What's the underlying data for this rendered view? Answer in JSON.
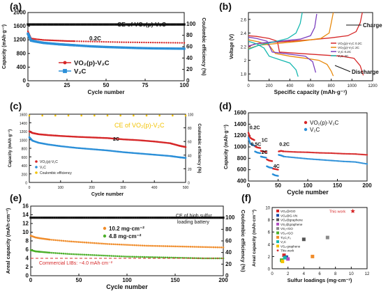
{
  "figure": {
    "panel_labels": [
      "(a)",
      "(b)",
      "(c)",
      "(d)",
      "(e)",
      "(f)"
    ]
  },
  "chart_data": [
    {
      "panel": "(a)",
      "type": "line",
      "xlabel": "Cycle number",
      "ylabel": "Capacity (mAh·g⁻¹)",
      "y2label": "Coulombic efficiency (%)",
      "xlim": [
        0,
        100
      ],
      "ylim": [
        0,
        2000
      ],
      "y2lim": [
        0,
        120
      ],
      "xticks": [
        0,
        25,
        50,
        75,
        100
      ],
      "yticks": [
        0,
        400,
        800,
        1200,
        1600,
        2000
      ],
      "y2ticks": [
        0,
        20,
        40,
        60,
        80,
        100
      ],
      "annotations": [
        "0.2C",
        "CE of VO₂(p)-V₂C"
      ],
      "series": [
        {
          "name": "VO₂(p)-V₂C",
          "color": "#d62728",
          "marker": "circle",
          "x": [
            0,
            2,
            5,
            10,
            15,
            20,
            25,
            30,
            40,
            50,
            60,
            70,
            80,
            90,
            100
          ],
          "y": [
            1450,
            1240,
            1220,
            1195,
            1185,
            1175,
            1165,
            1160,
            1150,
            1140,
            1130,
            1125,
            1120,
            1115,
            1110
          ]
        },
        {
          "name": "V₂C",
          "color": "#2b8fd8",
          "marker": "square",
          "x": [
            0,
            2,
            5,
            10,
            15,
            20,
            25,
            30,
            40,
            50,
            60,
            70,
            80,
            90,
            100
          ],
          "y": [
            1380,
            1180,
            1150,
            1110,
            1090,
            1070,
            1055,
            1040,
            1010,
            990,
            975,
            960,
            950,
            945,
            940
          ]
        },
        {
          "name": "CE of VO₂(p)-V₂C",
          "axis": "y2",
          "color": "#111111",
          "x": [
            0,
            100
          ],
          "y": [
            99,
            99
          ]
        }
      ]
    },
    {
      "panel": "(b)",
      "type": "line",
      "xlabel": "Specific capacity (mAh·g⁻¹)",
      "ylabel": "Voltage (V)",
      "xlim": [
        0,
        1200
      ],
      "ylim": [
        1.7,
        2.7
      ],
      "xticks": [
        0,
        200,
        400,
        600,
        800,
        1000,
        1200
      ],
      "yticks": [
        1.8,
        2.0,
        2.2,
        2.4,
        2.6
      ],
      "annotations": [
        "Charge",
        "Discharge"
      ],
      "series": [
        {
          "name": "VO₂(p)-V₂C 0.2C",
          "color": "#d62728",
          "discharge": {
            "x": [
              0,
              80,
              200,
              280,
              300,
              500,
              700,
              900,
              1020,
              1080,
              1110
            ],
            "y": [
              2.36,
              2.35,
              2.32,
              2.28,
              2.12,
              2.1,
              2.08,
              2.06,
              2.03,
              1.92,
              1.78
            ]
          },
          "charge": {
            "x": [
              0,
              60,
              200,
              400,
              600,
              800,
              960,
              1040,
              1080,
              1100
            ],
            "y": [
              2.2,
              2.24,
              2.26,
              2.28,
              2.3,
              2.33,
              2.36,
              2.42,
              2.55,
              2.7
            ]
          }
        },
        {
          "name": "VO₂(p)-V₂C 2C",
          "color": "#e8890c",
          "discharge": {
            "x": [
              0,
              100,
              200,
              260,
              400,
              550,
              680,
              760,
              800,
              820
            ],
            "y": [
              2.3,
              2.27,
              2.22,
              2.1,
              2.06,
              2.03,
              2.0,
              1.94,
              1.84,
              1.77
            ]
          },
          "charge": {
            "x": [
              0,
              100,
              300,
              500,
              700,
              780,
              800,
              820
            ],
            "y": [
              2.17,
              2.22,
              2.25,
              2.28,
              2.32,
              2.4,
              2.55,
              2.7
            ]
          }
        },
        {
          "name": "V₂C 0.2C",
          "color": "#7b3fbf",
          "discharge": {
            "x": [
              0,
              80,
              180,
              230,
              400,
              550,
              620,
              650
            ],
            "y": [
              2.34,
              2.32,
              2.28,
              2.12,
              2.09,
              2.06,
              1.98,
              1.82
            ]
          },
          "charge": {
            "x": [
              0,
              100,
              300,
              500,
              600,
              640,
              660
            ],
            "y": [
              2.21,
              2.25,
              2.28,
              2.31,
              2.36,
              2.48,
              2.68
            ]
          }
        },
        {
          "name": "V₂C 2C",
          "color": "#17b8b0",
          "discharge": {
            "x": [
              0,
              80,
              150,
              200,
              300,
              400,
              460,
              480
            ],
            "y": [
              2.28,
              2.24,
              2.18,
              2.06,
              2.01,
              1.96,
              1.86,
              1.76
            ]
          },
          "charge": {
            "x": [
              0,
              100,
              250,
              380,
              460,
              500,
              520
            ],
            "y": [
              2.16,
              2.22,
              2.27,
              2.32,
              2.4,
              2.54,
              2.7
            ]
          }
        }
      ]
    },
    {
      "panel": "(c)",
      "type": "line",
      "xlabel": "Cycle number",
      "ylabel": "Capacity (mAh g⁻¹)",
      "y2label": "Coulombic efficiency (%)",
      "xlim": [
        0,
        500
      ],
      "ylim": [
        0,
        1600
      ],
      "y2lim": [
        0,
        100
      ],
      "xticks": [
        0,
        100,
        200,
        300,
        400,
        500
      ],
      "yticks": [
        0,
        200,
        400,
        600,
        800,
        1000,
        1200,
        1400,
        1600
      ],
      "y2ticks": [
        0,
        20,
        40,
        60,
        80,
        100
      ],
      "annotations": [
        "2C",
        "CE of VO₂(p)-V₂C"
      ],
      "series": [
        {
          "name": "VO₂(p)-V₂C",
          "color": "#d62728",
          "x": [
            0,
            10,
            30,
            60,
            100,
            150,
            200,
            250,
            300,
            350,
            400,
            450,
            480,
            500
          ],
          "y": [
            1200,
            1160,
            1130,
            1110,
            1090,
            1070,
            1055,
            1040,
            1010,
            990,
            960,
            920,
            860,
            830
          ]
        },
        {
          "name": "V₂C",
          "color": "#2b8fd8",
          "x": [
            0,
            10,
            30,
            60,
            100,
            150,
            200,
            250,
            300,
            350,
            400,
            450,
            480,
            500
          ],
          "y": [
            1060,
            980,
            930,
            890,
            850,
            810,
            780,
            750,
            710,
            680,
            650,
            620,
            590,
            575
          ]
        },
        {
          "name": "Coulombic efficiency",
          "axis": "y2",
          "color": "#f2c200",
          "x": [
            0,
            500
          ],
          "y": [
            98,
            98
          ]
        }
      ]
    },
    {
      "panel": "(d)",
      "type": "scatter",
      "xlabel": "Cycle number",
      "ylabel": "Capacity (mAh·g⁻¹)",
      "xlim": [
        0,
        200
      ],
      "ylim": [
        400,
        1600
      ],
      "xticks": [
        0,
        50,
        100,
        150,
        200
      ],
      "yticks": [
        400,
        600,
        800,
        1000,
        1200,
        1400,
        1600
      ],
      "annotations": [
        "0.2C",
        "1C",
        "0.5C",
        "2C",
        "4C",
        "0.2C"
      ],
      "series": [
        {
          "name": "VO₂(p)-V₂C",
          "color": "#d62728",
          "x": [
            0,
            3,
            6,
            10,
            11,
            15,
            20,
            21,
            25,
            30,
            31,
            35,
            40,
            41,
            45,
            50,
            51,
            55,
            60,
            80,
            100,
            120,
            140,
            160,
            180,
            200
          ],
          "y": [
            1250,
            1160,
            1140,
            1120,
            1010,
            990,
            980,
            930,
            920,
            910,
            780,
            760,
            750,
            620,
            610,
            600,
            920,
            930,
            920,
            910,
            905,
            895,
            890,
            880,
            875,
            860
          ]
        },
        {
          "name": "V₂C",
          "color": "#2b8fd8",
          "x": [
            0,
            3,
            6,
            10,
            11,
            15,
            20,
            21,
            25,
            30,
            31,
            35,
            40,
            41,
            45,
            50,
            51,
            55,
            60,
            80,
            100,
            120,
            140,
            160,
            180,
            200
          ],
          "y": [
            1160,
            1060,
            1040,
            1020,
            920,
            900,
            890,
            830,
            820,
            810,
            660,
            640,
            630,
            520,
            500,
            490,
            860,
            850,
            830,
            810,
            790,
            775,
            760,
            745,
            735,
            700
          ]
        }
      ]
    },
    {
      "panel": "(e)",
      "type": "line",
      "xlabel": "Cycle number",
      "ylabel": "Areal capacity (mAh·cm⁻²)",
      "y2label": "Coulombic efficiency (%)",
      "xlim": [
        0,
        200
      ],
      "ylim": [
        0,
        16
      ],
      "y2lim": [
        0,
        120
      ],
      "xticks": [
        0,
        50,
        100,
        150,
        200
      ],
      "yticks": [
        0,
        2,
        4,
        6,
        8,
        10,
        12,
        14,
        16
      ],
      "y2ticks": [
        0,
        20,
        40,
        60,
        80,
        100
      ],
      "annotations": [
        "CE of high sulfur loading battery",
        "Commercial LIBs: ~4.0 mAh·cm⁻²"
      ],
      "reference_line": {
        "label": "Commercial LIBs: ~4.0 mAh·cm⁻²",
        "y": 4.0,
        "color": "#d62728"
      },
      "series": [
        {
          "name": "10.2 mg·cm⁻²",
          "color": "#f08c2a",
          "x": [
            0,
            5,
            10,
            20,
            40,
            60,
            80,
            100,
            120,
            140,
            160,
            180,
            200
          ],
          "y": [
            9.2,
            8.8,
            8.6,
            8.3,
            7.9,
            7.6,
            7.3,
            7.1,
            6.9,
            6.8,
            6.7,
            6.6,
            6.5
          ]
        },
        {
          "name": "4.8 mg·cm⁻²",
          "color": "#4caf2a",
          "x": [
            0,
            5,
            10,
            20,
            40,
            60,
            80,
            100,
            120,
            140,
            160,
            180,
            200
          ],
          "y": [
            5.9,
            5.6,
            5.5,
            5.3,
            5.0,
            4.8,
            4.6,
            4.4,
            4.3,
            4.2,
            4.1,
            4.0,
            4.0
          ]
        },
        {
          "name": "CE of high sulfur loading battery",
          "axis": "y2",
          "color": "#111111",
          "x": [
            0,
            200
          ],
          "y": [
            100,
            100
          ]
        }
      ]
    },
    {
      "panel": "(f)",
      "type": "scatter",
      "xlabel": "Sulfur loadings (mg·cm⁻²)",
      "ylabel": "Areal capacity (mAh·cm⁻²)",
      "xlim": [
        0,
        12
      ],
      "ylim": [
        0,
        10
      ],
      "xticks": [
        0,
        2,
        4,
        6,
        8,
        10,
        12
      ],
      "yticks": [
        0,
        2,
        4,
        6,
        8,
        10
      ],
      "annotations": [
        "This work"
      ],
      "series": [
        {
          "name": "VO₂@rGO",
          "color": "#d62728",
          "x": [
            1.5
          ],
          "y": [
            2.2
          ]
        },
        {
          "name": "VO₂@G-VN",
          "color": "#1f4fa8",
          "x": [
            1.8
          ],
          "y": [
            1.9
          ]
        },
        {
          "name": "VO₂@graphene",
          "color": "#555555",
          "x": [
            4.0
          ],
          "y": [
            4.8
          ]
        },
        {
          "name": "VS₂@graphene",
          "color": "#b04fc0",
          "x": [
            2.0
          ],
          "y": [
            1.6
          ]
        },
        {
          "name": "VS₂-rGO",
          "color": "#8a8a8a",
          "x": [
            7.0
          ],
          "y": [
            5.1
          ]
        },
        {
          "name": "VS₄-rGO",
          "color": "#4caf2a",
          "x": [
            1.2
          ],
          "y": [
            1.4
          ]
        },
        {
          "name": "Ti₃C₂Tₓ",
          "color": "#f08c2a",
          "x": [
            5.1
          ],
          "y": [
            2.0
          ]
        },
        {
          "name": "V₂C",
          "color": "#17b8b0",
          "x": [
            1.6
          ],
          "y": [
            1.8
          ]
        },
        {
          "name": "VS₂-graphene",
          "color": "#f2c200",
          "x": [
            1.3
          ],
          "y": [
            1.2
          ]
        },
        {
          "name": "This work",
          "color": "#d62728",
          "marker": "star",
          "x": [
            10.2
          ],
          "y": [
            9.4
          ]
        }
      ]
    }
  ]
}
